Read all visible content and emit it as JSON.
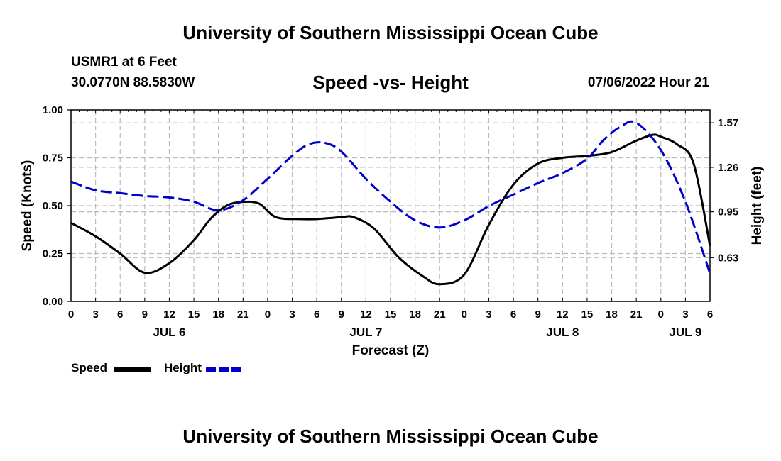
{
  "header": {
    "title": "University of Southern Mississippi Ocean Cube",
    "station": "USMR1 at 6 Feet",
    "coords": "30.0770N  88.5830W",
    "subtitle": "Speed -vs- Height",
    "datestamp": "07/06/2022 Hour 21"
  },
  "footer": {
    "title": "University of Southern Mississippi Ocean Cube"
  },
  "legend": {
    "speed_label": "Speed",
    "height_label": "Height"
  },
  "colors": {
    "speed": "#000000",
    "height": "#0000cc",
    "grid": "#bbbbbb"
  },
  "chart_data": {
    "type": "line",
    "title": "Speed -vs- Height",
    "xlabel": "Forecast (Z)",
    "ylabel": "Speed (Knots)",
    "y2label": "Height (feet)",
    "x_hours": [
      0,
      3,
      6,
      9,
      12,
      15,
      18,
      21,
      24,
      27,
      30,
      33,
      36,
      39,
      42,
      45,
      48,
      51,
      54,
      57,
      60,
      63,
      66,
      69,
      72,
      75,
      78
    ],
    "x_tick_labels": [
      "0",
      "3",
      "6",
      "9",
      "12",
      "15",
      "18",
      "21",
      "0",
      "3",
      "6",
      "9",
      "12",
      "15",
      "18",
      "21",
      "0",
      "3",
      "6",
      "9",
      "12",
      "15",
      "18",
      "21",
      "0",
      "3",
      "6"
    ],
    "day_labels": [
      {
        "label": "JUL 6",
        "hour": 12
      },
      {
        "label": "JUL 7",
        "hour": 36
      },
      {
        "label": "JUL 8",
        "hour": 60
      },
      {
        "label": "JUL 9",
        "hour": 75
      }
    ],
    "xlim": [
      0,
      78
    ],
    "ylim": [
      0,
      1.0
    ],
    "y_ticks": [
      "0.00",
      "0.25",
      "0.50",
      "0.75",
      "1.00"
    ],
    "y2lim": [
      0.325,
      1.66
    ],
    "y2_ticks": [
      "0.63",
      "0.95",
      "1.26",
      "1.57"
    ],
    "series": [
      {
        "name": "Speed",
        "axis": "left",
        "style": "solid",
        "x": [
          0,
          3,
          6,
          9,
          12,
          15,
          17,
          19,
          21,
          23,
          25,
          28,
          30,
          33,
          34.5,
          37,
          40,
          43,
          45,
          48,
          51,
          54,
          57,
          60,
          63,
          66,
          69,
          71,
          72,
          74,
          76,
          78
        ],
        "values": [
          0.41,
          0.34,
          0.25,
          0.15,
          0.2,
          0.32,
          0.43,
          0.5,
          0.52,
          0.51,
          0.44,
          0.43,
          0.43,
          0.44,
          0.44,
          0.38,
          0.23,
          0.13,
          0.09,
          0.14,
          0.4,
          0.61,
          0.72,
          0.75,
          0.76,
          0.78,
          0.84,
          0.87,
          0.86,
          0.82,
          0.72,
          0.29
        ]
      },
      {
        "name": "Height",
        "axis": "right",
        "style": "dashed",
        "x": [
          0,
          3,
          6,
          9,
          12,
          15,
          18,
          21,
          24,
          27,
          29,
          31,
          33,
          36,
          39,
          42,
          45,
          48,
          51,
          54,
          57,
          60,
          63,
          65,
          67,
          69,
          72,
          75,
          78
        ],
        "values": [
          1.16,
          1.1,
          1.08,
          1.06,
          1.05,
          1.02,
          0.96,
          1.03,
          1.18,
          1.34,
          1.42,
          1.43,
          1.37,
          1.18,
          1.02,
          0.89,
          0.84,
          0.89,
          0.99,
          1.07,
          1.15,
          1.22,
          1.32,
          1.45,
          1.54,
          1.57,
          1.38,
          1.02,
          0.52
        ]
      }
    ]
  }
}
